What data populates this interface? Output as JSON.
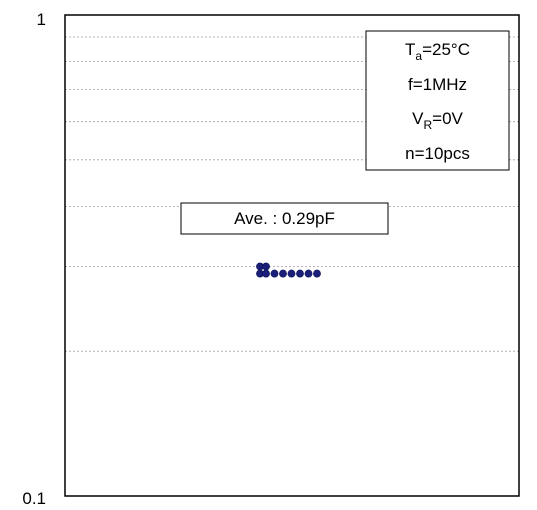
{
  "chart_data": {
    "type": "scatter",
    "y_scale": "log",
    "ylim": [
      0.1,
      1
    ],
    "y_tick_labels": [
      "1",
      "0.1"
    ],
    "grid": "horizontal dashed at minor log intervals",
    "points": [
      0.3,
      0.3,
      0.29,
      0.29,
      0.29,
      0.29,
      0.29,
      0.29,
      0.29,
      0.29
    ],
    "average_label": "Ave. : 0.29pF",
    "conditions": [
      {
        "main": "T",
        "sub": "a",
        "rest": "=25°C"
      },
      {
        "main": "f=1MHz",
        "sub": "",
        "rest": ""
      },
      {
        "main": "V",
        "sub": "R",
        "rest": "=0V"
      },
      {
        "main": "n=10pcs",
        "sub": "",
        "rest": ""
      }
    ],
    "colors": {
      "marker": "#1a1f7a",
      "grid": "#a0a0a0",
      "frame": "#000000"
    }
  }
}
